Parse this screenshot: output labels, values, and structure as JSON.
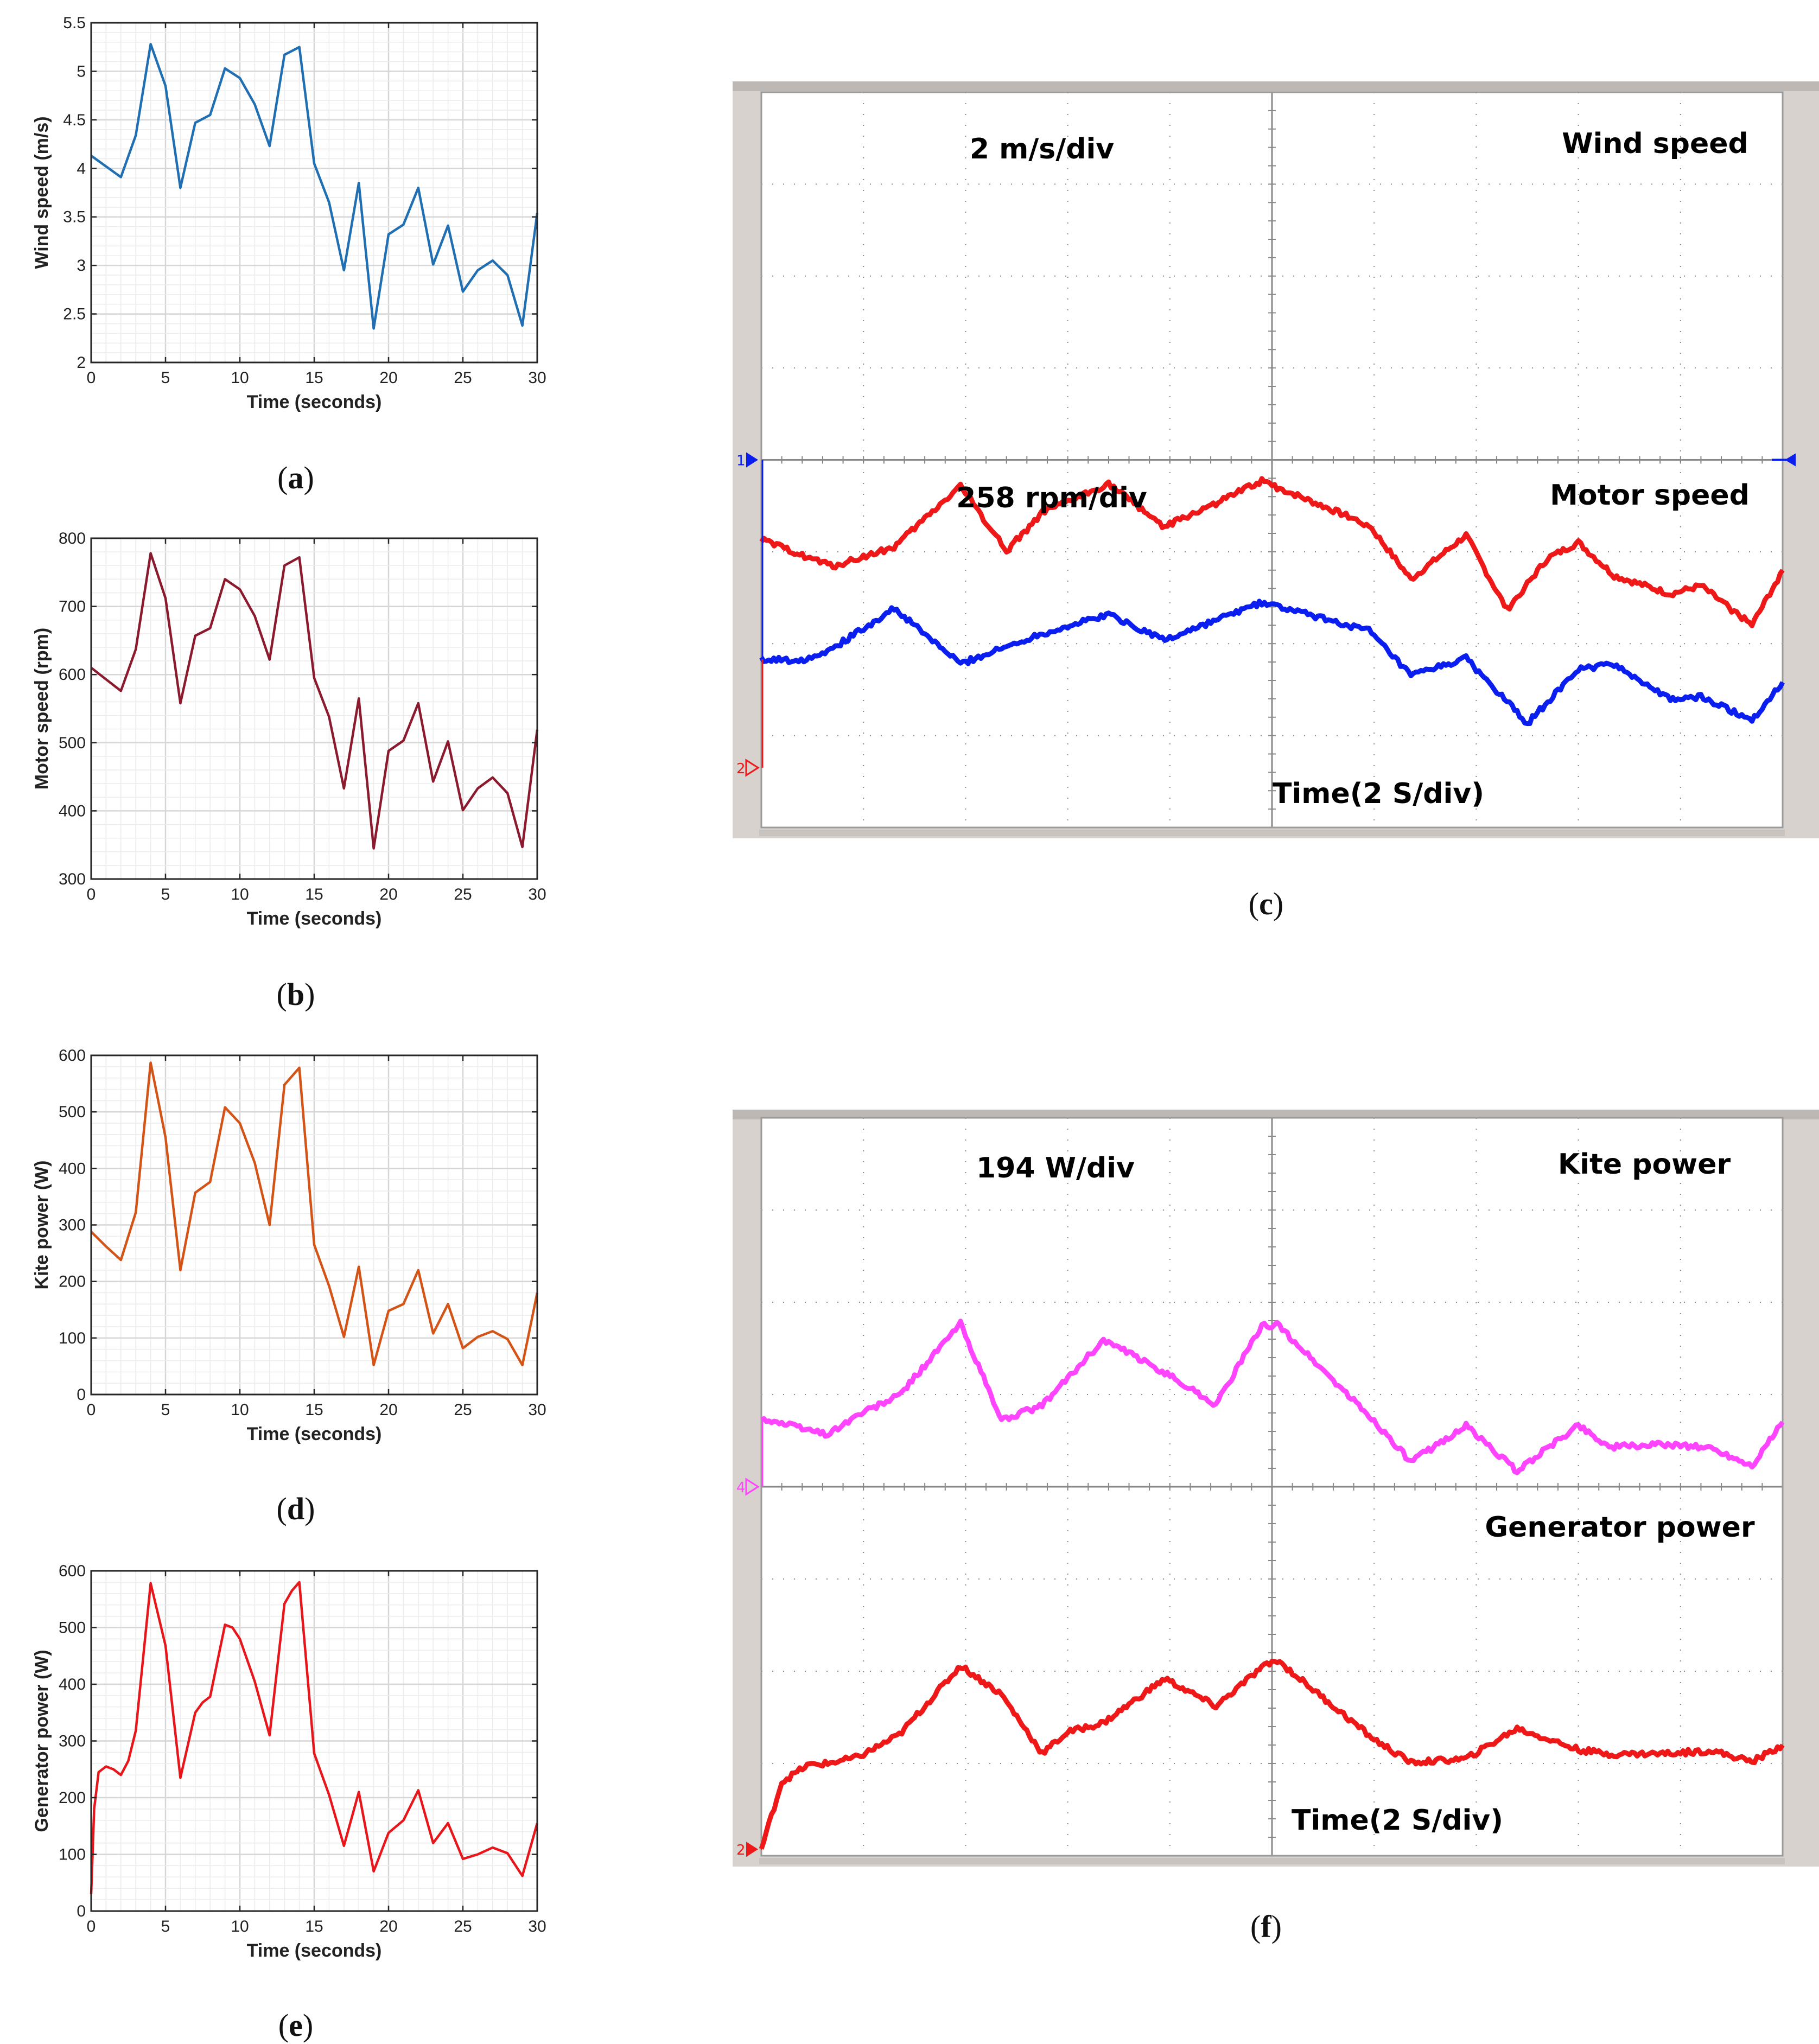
{
  "chart_data": [
    {
      "id": "a",
      "type": "line",
      "caption": "a",
      "xlabel": "Time (seconds)",
      "ylabel": "Wind speed (m/s)",
      "xlim": [
        0,
        30
      ],
      "ylim": [
        2,
        5.5
      ],
      "xticks": [
        0,
        5,
        10,
        15,
        20,
        25,
        30
      ],
      "yticks": [
        2,
        2.5,
        3,
        3.5,
        4,
        4.5,
        5,
        5.5
      ],
      "ytick_labels": [
        "2",
        "2.5",
        "3",
        "3.5",
        "4",
        "4.5",
        "5",
        "5.5"
      ],
      "grid": true,
      "series": [
        {
          "name": "Wind speed",
          "color": "#1f6fb2",
          "x": [
            0,
            1,
            2,
            3,
            4,
            5,
            6,
            7,
            8,
            9,
            10,
            11,
            12,
            13,
            14,
            15,
            16,
            17,
            18,
            19,
            20,
            21,
            22,
            23,
            24,
            25,
            26,
            27,
            28,
            29,
            30
          ],
          "y": [
            4.13,
            4.02,
            3.91,
            4.34,
            5.28,
            4.85,
            3.8,
            4.47,
            4.55,
            5.03,
            4.93,
            4.66,
            4.23,
            5.17,
            5.25,
            4.05,
            3.65,
            2.95,
            3.85,
            2.35,
            3.32,
            3.42,
            3.8,
            3.01,
            3.41,
            2.73,
            2.95,
            3.05,
            2.9,
            2.38,
            3.54
          ]
        }
      ]
    },
    {
      "id": "b",
      "type": "line",
      "caption": "b",
      "xlabel": "Time (seconds)",
      "ylabel": "Motor speed (rpm)",
      "xlim": [
        0,
        30
      ],
      "ylim": [
        300,
        800
      ],
      "xticks": [
        0,
        5,
        10,
        15,
        20,
        25,
        30
      ],
      "yticks": [
        300,
        400,
        500,
        600,
        700,
        800
      ],
      "ytick_labels": [
        "300",
        "400",
        "500",
        "600",
        "700",
        "800"
      ],
      "grid": true,
      "series": [
        {
          "name": "Motor speed",
          "color": "#8b1a2e",
          "x": [
            0,
            1,
            2,
            3,
            4,
            5,
            6,
            7,
            8,
            9,
            10,
            11,
            12,
            13,
            14,
            15,
            16,
            17,
            18,
            19,
            20,
            21,
            22,
            23,
            24,
            25,
            26,
            27,
            28,
            29,
            30
          ],
          "y": [
            610,
            593,
            576,
            637,
            778,
            712,
            558,
            657,
            668,
            740,
            725,
            686,
            622,
            760,
            772,
            595,
            538,
            433,
            565,
            345,
            488,
            503,
            558,
            443,
            502,
            401,
            433,
            449,
            426,
            347,
            519
          ]
        }
      ]
    },
    {
      "id": "d",
      "type": "line",
      "caption": "d",
      "xlabel": "Time (seconds)",
      "ylabel": "Kite power (W)",
      "xlim": [
        0,
        30
      ],
      "ylim": [
        0,
        600
      ],
      "xticks": [
        0,
        5,
        10,
        15,
        20,
        25,
        30
      ],
      "yticks": [
        0,
        100,
        200,
        300,
        400,
        500,
        600
      ],
      "ytick_labels": [
        "0",
        "100",
        "200",
        "300",
        "400",
        "500",
        "600"
      ],
      "grid": true,
      "series": [
        {
          "name": "Kite power",
          "color": "#d35416",
          "x": [
            0,
            1,
            2,
            3,
            4,
            5,
            6,
            7,
            8,
            9,
            10,
            11,
            12,
            13,
            14,
            15,
            16,
            17,
            18,
            19,
            20,
            21,
            22,
            23,
            24,
            25,
            26,
            27,
            28,
            29,
            30
          ],
          "y": [
            288,
            262,
            238,
            322,
            587,
            455,
            220,
            357,
            376,
            508,
            480,
            410,
            300,
            548,
            578,
            265,
            192,
            102,
            226,
            52,
            148,
            160,
            220,
            108,
            160,
            82,
            102,
            112,
            98,
            52,
            180
          ]
        }
      ]
    },
    {
      "id": "e",
      "type": "line",
      "caption": "e",
      "xlabel": "Time (seconds)",
      "ylabel": "Generator power (W)",
      "xlim": [
        0,
        30
      ],
      "ylim": [
        0,
        600
      ],
      "xticks": [
        0,
        5,
        10,
        15,
        20,
        25,
        30
      ],
      "yticks": [
        0,
        100,
        200,
        300,
        400,
        500,
        600
      ],
      "ytick_labels": [
        "0",
        "100",
        "200",
        "300",
        "400",
        "500",
        "600"
      ],
      "grid": true,
      "series": [
        {
          "name": "Generator power",
          "color": "#e8161b",
          "x": [
            0,
            0.2,
            0.5,
            1,
            1.5,
            2,
            2.5,
            3,
            4,
            5,
            6,
            7,
            7.5,
            8,
            9,
            9.5,
            10,
            11,
            12,
            13,
            13.5,
            14,
            15,
            16,
            17,
            18,
            19,
            20,
            21,
            22,
            23,
            24,
            25,
            26,
            27,
            28,
            29,
            30
          ],
          "y": [
            30,
            180,
            245,
            255,
            250,
            240,
            265,
            318,
            578,
            468,
            235,
            350,
            368,
            378,
            505,
            500,
            480,
            405,
            310,
            542,
            565,
            580,
            278,
            205,
            115,
            210,
            70,
            138,
            160,
            213,
            120,
            155,
            92,
            100,
            112,
            102,
            62,
            155
          ]
        }
      ]
    },
    {
      "id": "c",
      "type": "line",
      "caption": "c",
      "style": "oscilloscope",
      "volts_per_div_label": "2 m/s/div",
      "top_trace_label": "Wind speed",
      "mid_rate_label": "258 rpm/div",
      "bottom_trace_label": "Motor speed",
      "time_label": "Time(2 S/div)",
      "x_divisions": 10,
      "y_divisions": 8,
      "marker_labels": [
        "1",
        "2"
      ],
      "series": [
        {
          "name": "Wind speed",
          "color": "#0a1ef0",
          "unit": "div",
          "x": [
            0,
            0.39,
            0.7,
            1.3,
            1.95,
            2.7,
            3.4,
            3.95,
            4.9,
            5.95,
            6.36,
            6.9,
            7.5,
            8.0,
            8.35,
            8.9,
            9.2,
            9.7,
            10.0
          ],
          "y": [
            1.83,
            1.82,
            1.95,
            2.38,
            1.78,
            2.09,
            2.32,
            2.04,
            2.45,
            2.14,
            1.65,
            1.84,
            1.13,
            1.72,
            1.78,
            1.39,
            1.42,
            1.17,
            1.58
          ]
        },
        {
          "name": "Motor speed",
          "color": "#ee1818",
          "unit": "div",
          "x": [
            0,
            0.7,
            1.3,
            1.95,
            2.4,
            2.75,
            3.4,
            3.95,
            4.55,
            4.9,
            5.95,
            6.36,
            6.9,
            7.3,
            7.7,
            8.0,
            8.35,
            8.9,
            9.2,
            9.7,
            10.0
          ],
          "y": [
            3.13,
            2.84,
            3.05,
            3.72,
            3.01,
            3.42,
            3.74,
            3.27,
            3.58,
            3.77,
            3.29,
            2.7,
            3.18,
            2.37,
            2.93,
            3.1,
            2.74,
            2.54,
            2.63,
            2.2,
            2.8
          ]
        }
      ]
    },
    {
      "id": "f",
      "type": "line",
      "caption": "f",
      "style": "oscilloscope",
      "volts_per_div_label": "194 W/div",
      "top_trace_label": "Kite power",
      "bottom_trace_label": "Generator power",
      "time_label": "Time(2 S/div)",
      "x_divisions": 10,
      "y_divisions": 8,
      "marker_labels": [
        "4",
        "2"
      ],
      "series": [
        {
          "name": "Kite power",
          "color": "#ff44ff",
          "unit": "div",
          "x": [
            0,
            0.65,
            0.95,
            1.35,
            1.95,
            2.35,
            2.75,
            3.35,
            3.95,
            4.45,
            4.9,
            5.05,
            6.0,
            6.36,
            6.9,
            7.4,
            8.0,
            8.3,
            8.9,
            9.3,
            9.7,
            10.0
          ],
          "y": [
            4.74,
            4.57,
            4.78,
            4.99,
            5.77,
            4.72,
            4.88,
            5.59,
            5.24,
            4.89,
            5.74,
            5.76,
            4.71,
            4.27,
            4.66,
            4.17,
            4.67,
            4.43,
            4.46,
            4.42,
            4.23,
            4.7
          ]
        },
        {
          "name": "Generator power",
          "color": "#ee1818",
          "unit": "div",
          "x": [
            0,
            0.2,
            0.45,
            0.65,
            0.95,
            1.35,
            1.95,
            2.35,
            2.75,
            3.0,
            3.35,
            3.95,
            4.45,
            4.9,
            5.05,
            6.0,
            6.36,
            6.9,
            7.4,
            8.0,
            8.3,
            8.9,
            9.3,
            9.7,
            10.0
          ],
          "y": [
            0.07,
            0.8,
            0.98,
            1.0,
            1.07,
            1.31,
            2.06,
            1.75,
            1.11,
            1.34,
            1.44,
            1.92,
            1.62,
            2.04,
            2.12,
            1.26,
            1.01,
            1.05,
            1.38,
            1.15,
            1.1,
            1.11,
            1.14,
            1.02,
            1.2
          ]
        }
      ]
    }
  ]
}
